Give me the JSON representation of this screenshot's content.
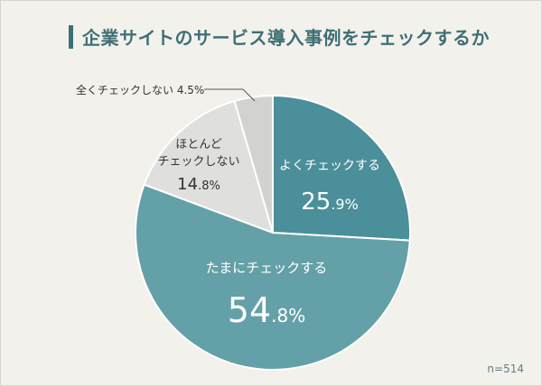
{
  "header": {
    "title": "企業サイトのサービス導入事例をチェックするか"
  },
  "footer": {
    "n_label": "n=514"
  },
  "colors": {
    "accent": "#3f6f76",
    "background": "#f2f1ec",
    "segment_1": "#4a8f99",
    "segment_2": "#64a0a8",
    "segment_3": "#dfdfdd",
    "segment_4": "#d2d2cf"
  },
  "chart_data": {
    "type": "pie",
    "title": "企業サイトのサービス導入事例をチェックするか",
    "n": "n=514",
    "slices": [
      {
        "label": "よくチェックする",
        "value": 25.9,
        "display_int": "25",
        "display_dec": ".9%"
      },
      {
        "label": "たまにチェックする",
        "value": 54.8,
        "display_int": "54",
        "display_dec": ".8%"
      },
      {
        "label_lines": [
          "ほとんど",
          "チェックしない"
        ],
        "value": 14.8,
        "display_int": "14",
        "display_dec": ".8%"
      },
      {
        "label": "全くチェックしない",
        "value": 4.5,
        "display": "全くチェックしない 4.5%"
      }
    ]
  }
}
